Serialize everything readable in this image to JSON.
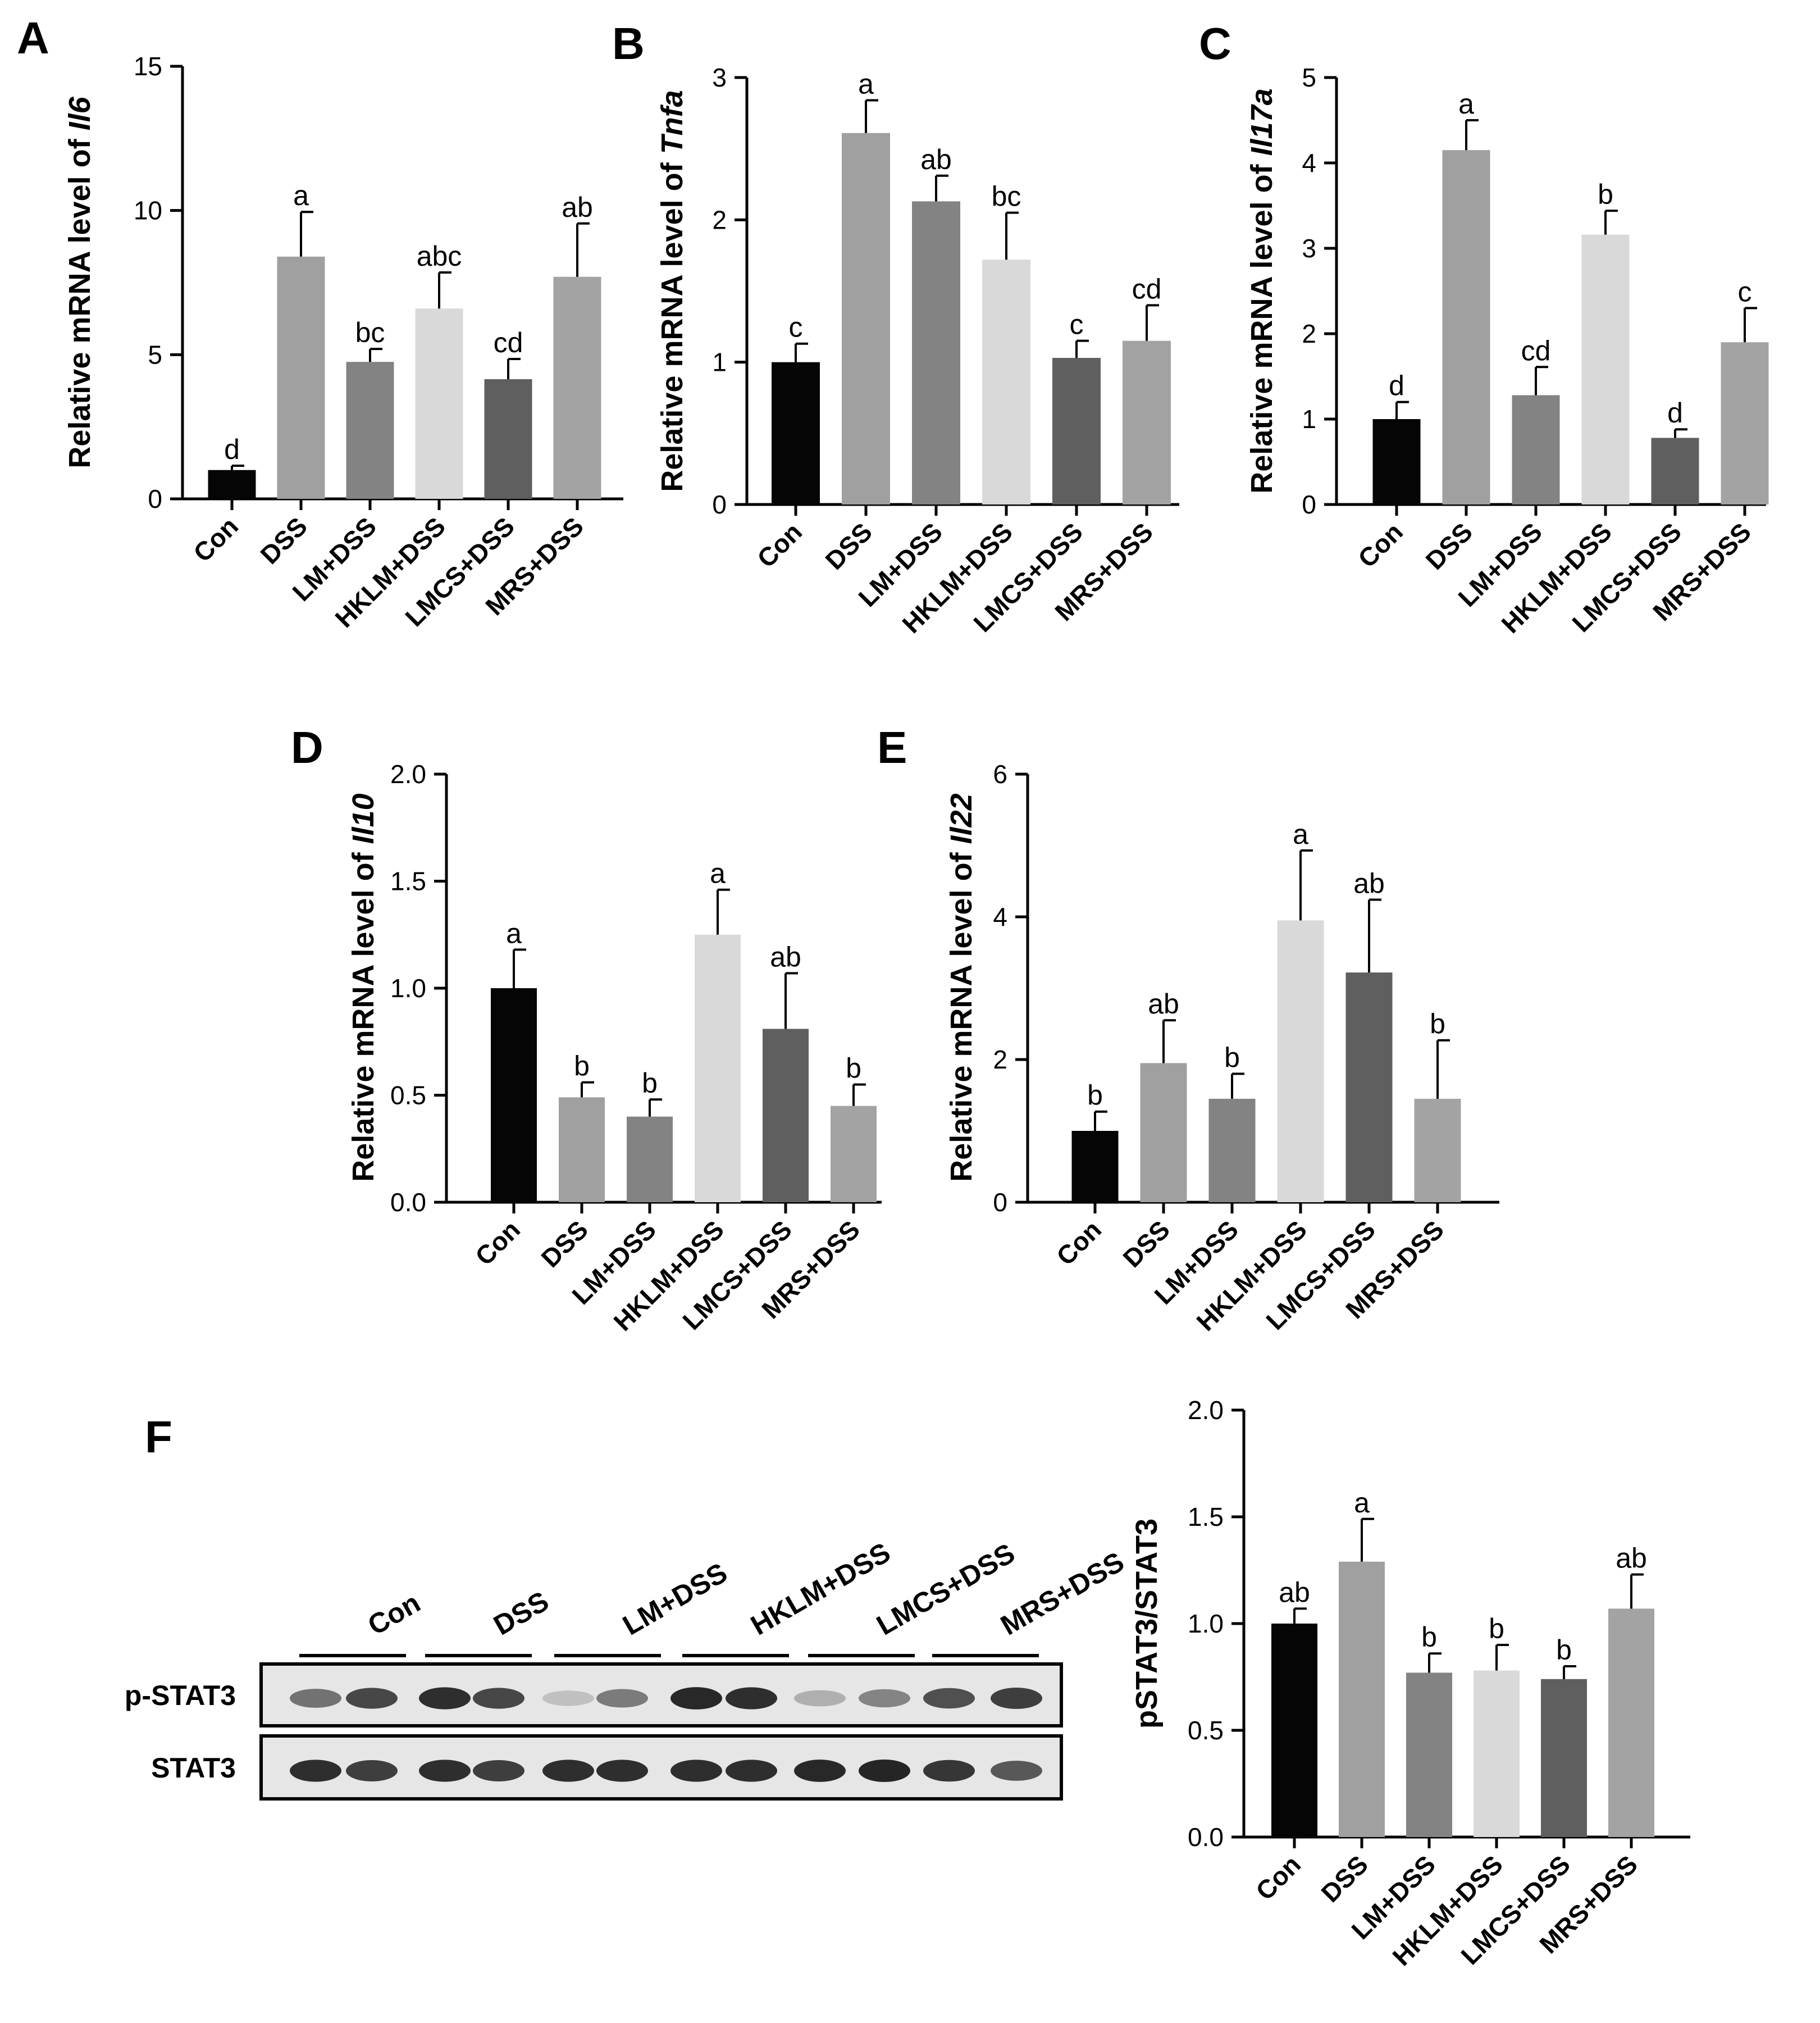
{
  "colors": {
    "Con": "#050505",
    "DSS": "#a0a0a0",
    "LM+DSS": "#838383",
    "HKLM+DSS": "#d9d9d9",
    "LMCS+DSS": "#5f5f5f",
    "MRS+DSS": "#a3a3a3",
    "axis": "#000000",
    "blot_background": "#e6e6e6",
    "blot_band": "#1a1a1a"
  },
  "chart_data": [
    {
      "panel": "A",
      "type": "bar",
      "ylabel_prefix": "Relative  mRNA level of ",
      "ylabel_gene": "Il6",
      "categories": [
        "Con",
        "DSS",
        "LM+DSS",
        "HKLM+DSS",
        "LMCS+DSS",
        "MRS+DSS"
      ],
      "values": [
        1.0,
        8.4,
        4.75,
        6.6,
        4.15,
        7.7
      ],
      "errors": [
        0.15,
        1.55,
        0.45,
        1.25,
        0.7,
        1.85
      ],
      "significance": [
        "d",
        "a",
        "bc",
        "abc",
        "cd",
        "ab"
      ],
      "ylim": [
        0,
        15
      ],
      "yticks": [
        0,
        5,
        10,
        15
      ],
      "ytick_labels": [
        "0",
        "5",
        "10",
        "15"
      ]
    },
    {
      "panel": "B",
      "type": "bar",
      "ylabel_prefix": "Relative  mRNA level of ",
      "ylabel_gene": "Tnfa",
      "categories": [
        "Con",
        "DSS",
        "LM+DSS",
        "HKLM+DSS",
        "LMCS+DSS",
        "MRS+DSS"
      ],
      "values": [
        1.0,
        2.61,
        2.13,
        1.72,
        1.03,
        1.15
      ],
      "errors": [
        0.13,
        0.23,
        0.18,
        0.33,
        0.12,
        0.25
      ],
      "significance": [
        "c",
        "a",
        "ab",
        "bc",
        "c",
        "cd"
      ],
      "ylim": [
        0,
        3
      ],
      "yticks": [
        0,
        1,
        2,
        3
      ],
      "ytick_labels": [
        "0",
        "1",
        "2",
        "3"
      ]
    },
    {
      "panel": "C",
      "type": "bar",
      "ylabel_prefix": "Relative  mRNA level of ",
      "ylabel_gene": "Il17a",
      "categories": [
        "Con",
        "DSS",
        "LM+DSS",
        "HKLM+DSS",
        "LMCS+DSS",
        "MRS+DSS"
      ],
      "values": [
        1.0,
        4.15,
        1.28,
        3.16,
        0.78,
        1.9
      ],
      "errors": [
        0.2,
        0.35,
        0.33,
        0.28,
        0.1,
        0.4
      ],
      "significance": [
        "d",
        "a",
        "cd",
        "b",
        "d",
        "c"
      ],
      "ylim": [
        0,
        5
      ],
      "yticks": [
        0,
        1,
        2,
        3,
        4,
        5
      ],
      "ytick_labels": [
        "0",
        "1",
        "2",
        "3",
        "4",
        "5"
      ]
    },
    {
      "panel": "D",
      "type": "bar",
      "ylabel_prefix": "Relative  mRNA level of ",
      "ylabel_gene": "Il10",
      "categories": [
        "Con",
        "DSS",
        "LM+DSS",
        "HKLM+DSS",
        "LMCS+DSS",
        "MRS+DSS"
      ],
      "values": [
        1.0,
        0.49,
        0.4,
        1.25,
        0.81,
        0.45
      ],
      "errors": [
        0.18,
        0.07,
        0.08,
        0.21,
        0.26,
        0.1
      ],
      "significance": [
        "a",
        "b",
        "b",
        "a",
        "ab",
        "b"
      ],
      "ylim": [
        0,
        2
      ],
      "yticks": [
        0,
        0.5,
        1,
        1.5,
        2
      ],
      "ytick_labels": [
        "0.0",
        "0.5",
        "1.0",
        "1.5",
        "2.0"
      ]
    },
    {
      "panel": "E",
      "type": "bar",
      "ylabel_prefix": "Relative  mRNA level of ",
      "ylabel_gene": "Il22",
      "categories": [
        "Con",
        "DSS",
        "LM+DSS",
        "HKLM+DSS",
        "LMCS+DSS",
        "MRS+DSS"
      ],
      "values": [
        1.0,
        1.95,
        1.45,
        3.95,
        3.22,
        1.45
      ],
      "errors": [
        0.27,
        0.6,
        0.35,
        0.98,
        1.02,
        0.82
      ],
      "significance": [
        "b",
        "ab",
        "b",
        "a",
        "ab",
        "b"
      ],
      "ylim": [
        0,
        6
      ],
      "yticks": [
        0,
        2,
        4,
        6
      ],
      "ytick_labels": [
        "0",
        "2",
        "4",
        "6"
      ]
    },
    {
      "panel": "",
      "type": "bar",
      "ylabel_prefix": "pSTAT3/STAT3",
      "ylabel_gene": "",
      "categories": [
        "Con",
        "DSS",
        "LM+DSS",
        "HKLM+DSS",
        "LMCS+DSS",
        "MRS+DSS"
      ],
      "values": [
        1.0,
        1.29,
        0.77,
        0.78,
        0.74,
        1.07
      ],
      "errors": [
        0.07,
        0.2,
        0.09,
        0.12,
        0.06,
        0.16
      ],
      "significance": [
        "ab",
        "a",
        "b",
        "b",
        "b",
        "ab"
      ],
      "ylim": [
        0,
        2
      ],
      "yticks": [
        0,
        0.5,
        1,
        1.5,
        2
      ],
      "ytick_labels": [
        "0.0",
        "0.5",
        "1.0",
        "1.5",
        "2.0"
      ]
    }
  ],
  "western_blot": {
    "panel": "F",
    "groups": [
      "Con",
      "DSS",
      "LM+DSS",
      "HKLM+DSS",
      "LMCS+DSS",
      "MRS+DSS"
    ],
    "rows": [
      {
        "label": "p-STAT3",
        "band_intensity": [
          0.55,
          0.8,
          0.95,
          0.8,
          0.1,
          0.5,
          0.98,
          0.95,
          0.2,
          0.45,
          0.75,
          0.85
        ]
      },
      {
        "label": "STAT3",
        "band_intensity": [
          0.95,
          0.85,
          0.95,
          0.85,
          0.95,
          0.95,
          0.95,
          0.95,
          0.98,
          1.0,
          0.9,
          0.7
        ]
      }
    ]
  }
}
